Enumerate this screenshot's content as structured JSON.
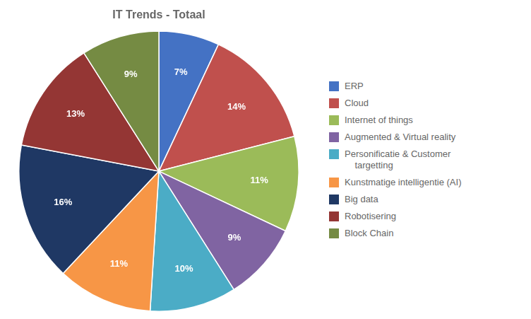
{
  "chart_data": {
    "type": "pie",
    "title": "IT Trends - Totaal",
    "categories": [
      "ERP",
      "Cloud",
      "Internet of things",
      "Augmented & Virtual reality",
      "Personificatie & Customer\n    targetting",
      "Kunstmatige intelligentie (AI)",
      "Big data",
      "Robotisering",
      "Block Chain"
    ],
    "values": [
      7,
      14,
      11,
      9,
      10,
      11,
      16,
      13,
      9
    ],
    "value_labels": [
      "7%",
      "14%",
      "11%",
      "9%",
      "10%",
      "11%",
      "16%",
      "13%",
      "9%"
    ],
    "colors": [
      "#4472C4",
      "#C0504D",
      "#9BBB59",
      "#8064A2",
      "#4BACC6",
      "#F79646",
      "#1F3864",
      "#943634",
      "#758B43"
    ],
    "data_labels": true,
    "legend": "right"
  }
}
